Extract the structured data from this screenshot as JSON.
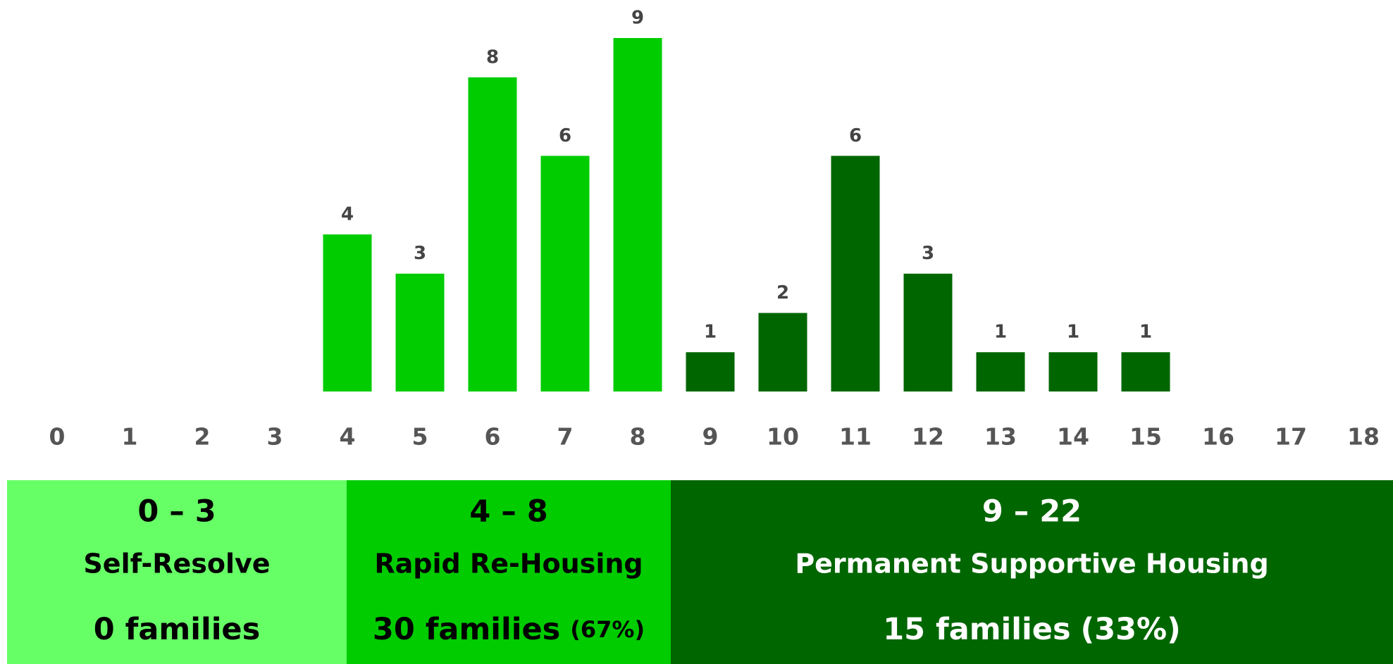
{
  "chart_data": {
    "type": "bar",
    "categories": [
      "0",
      "1",
      "2",
      "3",
      "4",
      "5",
      "6",
      "7",
      "8",
      "9",
      "10",
      "11",
      "12",
      "13",
      "14",
      "15",
      "16",
      "17",
      "18"
    ],
    "values": [
      null,
      null,
      null,
      null,
      4,
      3,
      8,
      6,
      9,
      1,
      2,
      6,
      3,
      1,
      1,
      1,
      null,
      null,
      null
    ],
    "colors": [
      null,
      null,
      null,
      null,
      "#00cc00",
      "#00cc00",
      "#00cc00",
      "#00cc00",
      "#00cc00",
      "#006600",
      "#006600",
      "#006600",
      "#006600",
      "#006600",
      "#006600",
      "#006600",
      null,
      null,
      null
    ],
    "ylim": [
      0,
      9
    ],
    "groups": [
      {
        "range": "0 – 3",
        "label": "Self-Resolve",
        "families": "0 families",
        "color": "#66ff66",
        "text_color": "#000000"
      },
      {
        "range": "4 – 8",
        "label": "Rapid Re-Housing",
        "families": "30 families",
        "share": "(67%)",
        "color": "#00cc00",
        "text_color": "#000000"
      },
      {
        "range": "9 – 22",
        "label": "Permanent Supportive Housing",
        "families": "15 families",
        "share": "(33%)",
        "color": "#006600",
        "text_color": "#ffffff"
      }
    ]
  }
}
